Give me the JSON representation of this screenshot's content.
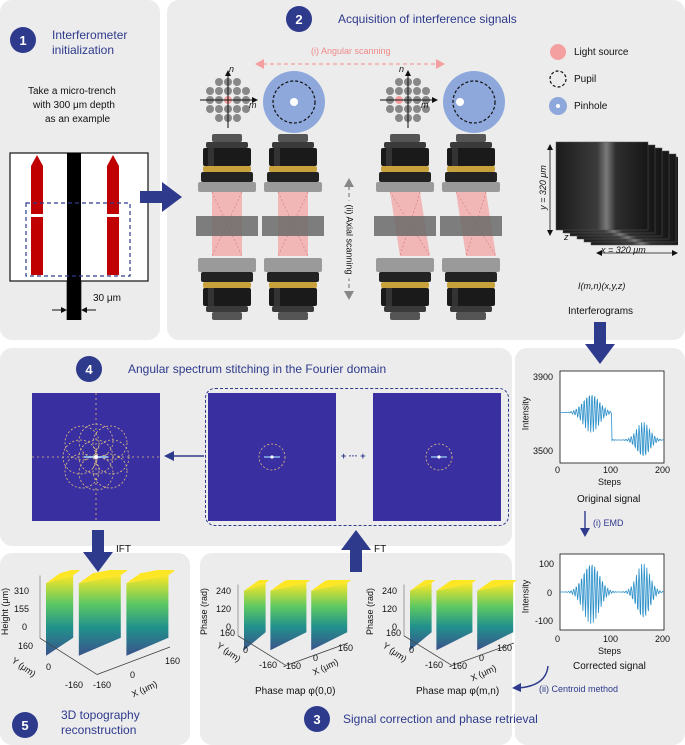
{
  "panel1": {
    "num": "1",
    "title_line1": "Interferometer",
    "title_line2": "initialization",
    "desc_line1": "Take a micro-trench",
    "desc_line2": "with 300 μm depth",
    "desc_line3": "as an example",
    "width_label": "30 μm"
  },
  "panel2": {
    "num": "2",
    "title": "Acquisition of interference signals",
    "angular": "(i) Angular scanning",
    "axial_line1": "(ii) Axial",
    "axial_line2": "scanning",
    "axis_n": "n",
    "axis_m": "m",
    "legend": {
      "light": "Light source",
      "pupil": "Pupil",
      "pinhole": "Pinhole"
    },
    "stack_y": "y = 320 μm",
    "stack_x": "x = 320 μm",
    "stack_z": "z",
    "intensity_label": "I(m,n)(x,y,z)",
    "interferograms": "Interferograms"
  },
  "panel4": {
    "num": "4",
    "title": "Angular spectrum stitching in the Fourier domain",
    "dots": "+ ··· +",
    "ift": "IFT",
    "ft": "FT"
  },
  "signal1": {
    "y_top": "3900",
    "y_bottom": "3500",
    "ylabel": "Intensity",
    "x0": "0",
    "x1": "100",
    "x2": "200",
    "xlabel": "Steps",
    "caption": "Original signal"
  },
  "emd": "(i) EMD",
  "signal2": {
    "y_top": "100",
    "y_mid": "0",
    "y_bottom": "-100",
    "ylabel": "Intensity",
    "x0": "0",
    "x1": "100",
    "x2": "200",
    "xlabel": "Steps",
    "caption": "Corrected signal"
  },
  "centroid": "(ii) Centroid method",
  "panel5": {
    "num": "5",
    "title_line1": "3D topography",
    "title_line2": "reconstruction",
    "z_ticks": [
      "310",
      "155",
      "0"
    ],
    "zlabel": "Height (μm)",
    "y_ticks": [
      "160",
      "0",
      "-160"
    ],
    "ylabel": "Y (μm)",
    "x_ticks": [
      "-160",
      "0",
      "160"
    ],
    "xlabel": "X (μm)"
  },
  "panel3": {
    "num": "3",
    "title": "Signal correction and phase retrieval",
    "map1": {
      "z_ticks": [
        "240",
        "120",
        "0"
      ],
      "zlabel": "Phase (rad)",
      "y_ticks": [
        "160",
        "0",
        "-160"
      ],
      "ylabel": "Y (μm)",
      "x_ticks": [
        "-160",
        "0",
        "160"
      ],
      "xlabel": "X (μm)",
      "caption": "Phase map φ(0,0)"
    },
    "map2": {
      "z_ticks": [
        "240",
        "120",
        "0"
      ],
      "zlabel": "Phase (rad)",
      "y_ticks": [
        "160",
        "0",
        "-160"
      ],
      "ylabel": "Y (μm)",
      "x_ticks": [
        "-160",
        "0",
        "160"
      ],
      "xlabel": "X (μm)",
      "caption": "Phase map φ(m,n)"
    }
  },
  "colors": {
    "panel": "#ececec",
    "accent": "#2e3a8c",
    "fourier_bg": "#3a2fa0",
    "red": "#c00000",
    "pink": "#f4a0a0",
    "pinhole": "#8ea8dc"
  },
  "icons": [
    "right-arrow-icon",
    "down-arrow-icon",
    "up-arrow-icon",
    "left-arrow-icon",
    "objective-lens-icon",
    "pinhole-icon",
    "pupil-icon",
    "light-source-icon"
  ]
}
